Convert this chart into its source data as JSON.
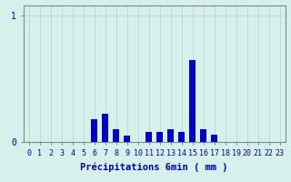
{
  "categories": [
    0,
    1,
    2,
    3,
    4,
    5,
    6,
    7,
    8,
    9,
    10,
    11,
    12,
    13,
    14,
    15,
    16,
    17,
    18,
    19,
    20,
    21,
    22,
    23
  ],
  "values": [
    0,
    0,
    0,
    0,
    0,
    0,
    0.18,
    0.22,
    0.1,
    0.05,
    0,
    0.08,
    0.08,
    0.1,
    0.08,
    0.65,
    0.1,
    0.06,
    0,
    0,
    0,
    0,
    0,
    0
  ],
  "bar_color": "#0000cc",
  "background_color": "#d6f0ec",
  "xlabel": "Précipitations 6min ( mm )",
  "ytick_labels": [
    "0",
    "1"
  ],
  "ytick_vals": [
    0,
    1
  ],
  "ylim": [
    0,
    1.08
  ],
  "xlim": [
    -0.5,
    23.5
  ],
  "grid_color": "#b8dcd8",
  "axis_color": "#888888",
  "text_color": "#0000aa",
  "xlabel_fontsize": 7.5,
  "tick_fontsize": 6,
  "bar_width": 0.6
}
